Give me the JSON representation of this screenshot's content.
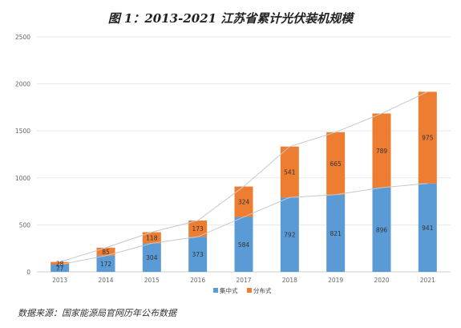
{
  "chart_data": {
    "type": "bar",
    "stacked": true,
    "title": "图 1：2013-2021 江苏省累计光伏装机规模",
    "categories": [
      "2013",
      "2014",
      "2015",
      "2016",
      "2017",
      "2018",
      "2019",
      "2020",
      "2021"
    ],
    "series": [
      {
        "name": "集中式",
        "color": "#5b9bd5",
        "values": [
          77,
          172,
          304,
          373,
          584,
          792,
          821,
          896,
          941
        ]
      },
      {
        "name": "分布式",
        "color": "#ed7d31",
        "values": [
          28,
          85,
          118,
          173,
          324,
          541,
          665,
          789,
          975
        ]
      }
    ],
    "ylim": [
      0,
      2500
    ],
    "yticks": [
      0,
      500,
      1000,
      1500,
      2000,
      2500
    ],
    "grid": true,
    "legend": "bottom",
    "trend_lines": true
  },
  "source_note": "数据来源：国家能源局官网历年公布数据"
}
